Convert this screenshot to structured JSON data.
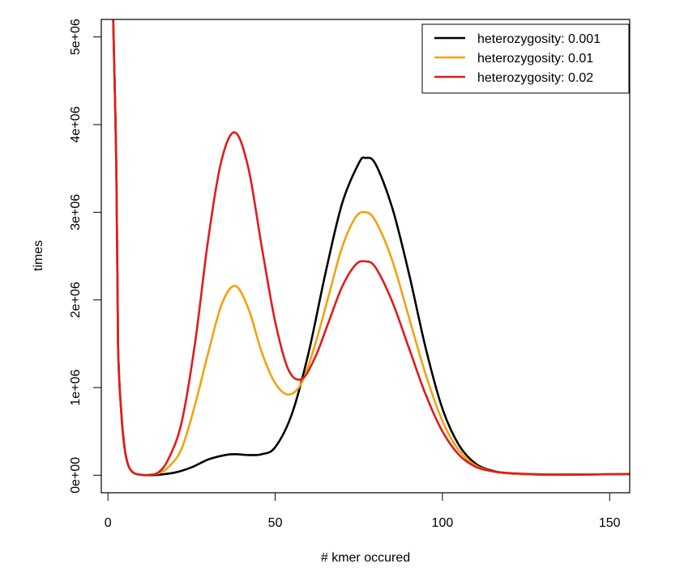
{
  "chart_data": {
    "type": "line",
    "title": "",
    "xlabel": "# kmer occured",
    "ylabel": "times",
    "xlim": [
      -2,
      156
    ],
    "ylim": [
      -200000,
      5200000
    ],
    "grid": false,
    "legend_position": "top-right",
    "x_ticks": [
      {
        "value": 0,
        "label": "0"
      },
      {
        "value": 50,
        "label": "50"
      },
      {
        "value": 100,
        "label": "100"
      },
      {
        "value": 150,
        "label": "150"
      }
    ],
    "y_ticks": [
      {
        "value": 0,
        "label": "0e+00"
      },
      {
        "value": 1000000,
        "label": "1e+06"
      },
      {
        "value": 2000000,
        "label": "2e+06"
      },
      {
        "value": 3000000,
        "label": "3e+06"
      },
      {
        "value": 4000000,
        "label": "4e+06"
      },
      {
        "value": 5000000,
        "label": "5e+06"
      }
    ],
    "series": [
      {
        "name": "heterozygosity: 0.001",
        "color": "#000000",
        "x": [
          1.5,
          2.5,
          3,
          4,
          5,
          6,
          7,
          8,
          10,
          12,
          15,
          20,
          25,
          30,
          35,
          38,
          42,
          46,
          50,
          55,
          60,
          65,
          70,
          75,
          77,
          80,
          85,
          90,
          95,
          100,
          105,
          110,
          115,
          120,
          130,
          140,
          150,
          156
        ],
        "y": [
          5300000,
          3500000,
          1500000,
          700000,
          300000,
          120000,
          50000,
          20000,
          3000,
          0,
          5000,
          30000,
          90000,
          180000,
          230000,
          240000,
          230000,
          240000,
          320000,
          700000,
          1400000,
          2300000,
          3100000,
          3560000,
          3620000,
          3550000,
          3050000,
          2300000,
          1450000,
          760000,
          340000,
          130000,
          50000,
          20000,
          6000,
          6000,
          12000,
          15000
        ]
      },
      {
        "name": "heterozygosity: 0.01",
        "color": "#f2a20f",
        "x": [
          1.5,
          2.5,
          3,
          4,
          5,
          6,
          7,
          8,
          10,
          12,
          15,
          18,
          22,
          26,
          30,
          34,
          38,
          42,
          46,
          50,
          54,
          58,
          62,
          66,
          70,
          74,
          77,
          80,
          85,
          90,
          95,
          100,
          105,
          110,
          115,
          120,
          130,
          140,
          150,
          156
        ],
        "y": [
          5300000,
          3500000,
          1500000,
          700000,
          300000,
          120000,
          50000,
          20000,
          5000,
          3000,
          20000,
          90000,
          300000,
          800000,
          1400000,
          1950000,
          2160000,
          1900000,
          1400000,
          1050000,
          920000,
          1060000,
          1500000,
          2050000,
          2600000,
          2940000,
          3000000,
          2900000,
          2450000,
          1800000,
          1150000,
          620000,
          280000,
          110000,
          45000,
          20000,
          8000,
          8000,
          12000,
          15000
        ]
      },
      {
        "name": "heterozygosity: 0.02",
        "color": "#e21a1c",
        "x": [
          1.5,
          2.5,
          3,
          4,
          5,
          6,
          7,
          8,
          10,
          12,
          15,
          18,
          22,
          26,
          30,
          34,
          38,
          42,
          46,
          50,
          54,
          58,
          62,
          66,
          70,
          74,
          77,
          80,
          85,
          90,
          95,
          100,
          105,
          110,
          115,
          120,
          130,
          140,
          150,
          156
        ],
        "y": [
          5300000,
          3500000,
          1500000,
          700000,
          300000,
          120000,
          50000,
          20000,
          5000,
          3000,
          30000,
          180000,
          600000,
          1500000,
          2700000,
          3600000,
          3910000,
          3500000,
          2600000,
          1750000,
          1200000,
          1100000,
          1350000,
          1750000,
          2150000,
          2400000,
          2440000,
          2370000,
          1980000,
          1450000,
          920000,
          500000,
          230000,
          95000,
          45000,
          25000,
          10000,
          8000,
          10000,
          12000
        ]
      }
    ]
  }
}
